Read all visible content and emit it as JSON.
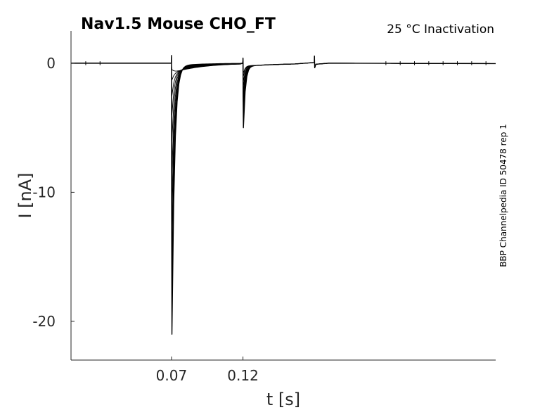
{
  "chart_data": {
    "type": "line",
    "title": "Nav1.5  Mouse  CHO_FT",
    "subtitle": "25 °C  Inactivation",
    "xlabel": "t [s]",
    "ylabel": "I [nA]",
    "side_note": "BBP Channelpedia ID 50478 rep 1",
    "xlim": [
      -0.0003,
      0.2968
    ],
    "ylim": [
      -23,
      2.5
    ],
    "x_ticks": [
      0.07,
      0.12
    ],
    "x_tick_labels": [
      "0.07",
      "0.12"
    ],
    "y_ticks": [
      0,
      -10,
      -20
    ],
    "y_tick_labels": [
      "0",
      "-10",
      "-20"
    ],
    "grid": false,
    "legend": "none",
    "line_color": "#000000",
    "sweep_count": 12,
    "events": {
      "pulse1_on": 0.07,
      "pulse2_on": 0.12,
      "pulse2_off": 0.17,
      "pulse1_peaks": [
        -21.0,
        -19.3,
        -18.0,
        -16.0,
        -13.5,
        -11.0,
        -8.5,
        -6.0,
        -4.0,
        -2.5,
        -1.3,
        -0.5
      ],
      "pulse2_peak": -5.0,
      "artifact_times": [
        0.01,
        0.02,
        0.22,
        0.23,
        0.24,
        0.25,
        0.26,
        0.27,
        0.28,
        0.29
      ]
    }
  }
}
